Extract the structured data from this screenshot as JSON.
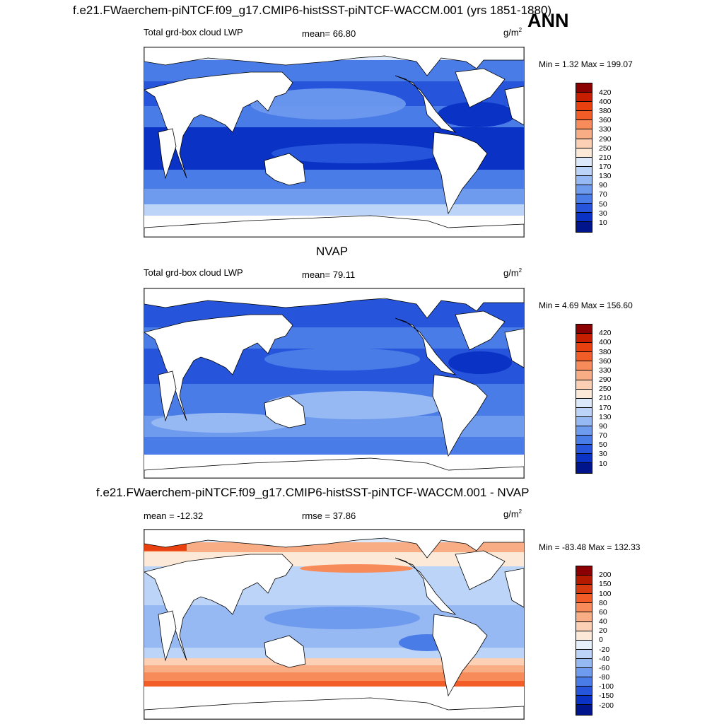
{
  "figure": {
    "title": "f.e21.FWaerchem-piNTCF.f09_g17.CMIP6-histSST-piNTCF-WACCM.001 (yrs 1851-1880)",
    "season": "ANN"
  },
  "panels": [
    {
      "left_label": "Total grd-box cloud LWP",
      "center_label": "mean=  66.80",
      "units": "g/m",
      "units_exp": "2",
      "minmax": "Min =   1.32 Max = 199.07",
      "colorbar_levels": [
        "420",
        "400",
        "380",
        "360",
        "330",
        "290",
        "250",
        "210",
        "170",
        "130",
        "90",
        "70",
        "50",
        "30",
        "10"
      ]
    },
    {
      "title": "NVAP",
      "left_label": "Total grd-box cloud LWP",
      "center_label": "mean=  79.11",
      "units": "g/m",
      "units_exp": "2",
      "minmax": "Min =   4.69 Max = 156.60",
      "colorbar_levels": [
        "420",
        "400",
        "380",
        "360",
        "330",
        "290",
        "250",
        "210",
        "170",
        "130",
        "90",
        "70",
        "50",
        "30",
        "10"
      ]
    },
    {
      "title": "f.e21.FWaerchem-piNTCF.f09_g17.CMIP6-histSST-piNTCF-WACCM.001 - NVAP",
      "left_label": "mean = -12.32",
      "center_label": "rmse =  37.86",
      "units": "g/m",
      "units_exp": "2",
      "minmax": "Min = -83.48 Max = 132.33",
      "colorbar_levels": [
        "200",
        "150",
        "100",
        "80",
        "60",
        "40",
        "20",
        "0",
        "-20",
        "-40",
        "-60",
        "-80",
        "-100",
        "-150",
        "-200"
      ]
    }
  ],
  "colors": {
    "seq_top_to_bottom": [
      "#8b0000",
      "#c81e00",
      "#e8400e",
      "#f25c27",
      "#f78b5a",
      "#f9ad85",
      "#fbd0b5",
      "#fde9d8",
      "#dbe9fa",
      "#bcd4f7",
      "#97b9f3",
      "#6f9bee",
      "#4a7ce8",
      "#2655db",
      "#0a32c4",
      "#00148c"
    ]
  }
}
